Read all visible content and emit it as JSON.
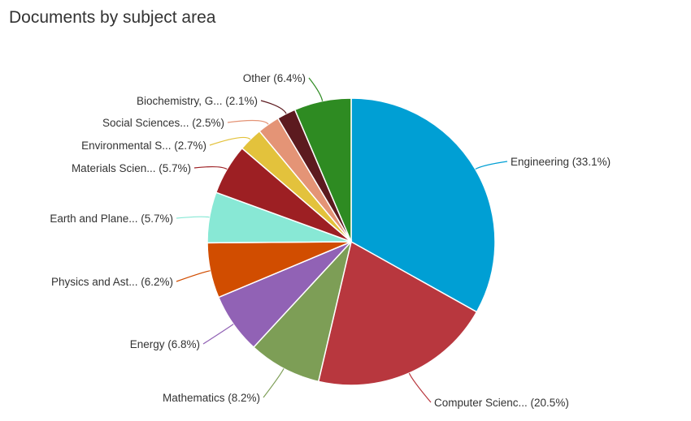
{
  "chart_data": {
    "type": "pie",
    "title": "Documents by subject area",
    "series": [
      {
        "label": "Engineering (33.1%)",
        "value": 33.1,
        "color": "#009fd4"
      },
      {
        "label": "Computer Scienc... (20.5%)",
        "value": 20.5,
        "color": "#b8373e"
      },
      {
        "label": "Mathematics (8.2%)",
        "value": 8.2,
        "color": "#7d9e56"
      },
      {
        "label": "Energy (6.8%)",
        "value": 6.8,
        "color": "#9162b5"
      },
      {
        "label": "Physics and Ast... (6.2%)",
        "value": 6.2,
        "color": "#d14d00"
      },
      {
        "label": "Earth and Plane... (5.7%)",
        "value": 5.7,
        "color": "#88e8d5"
      },
      {
        "label": "Materials Scien... (5.7%)",
        "value": 5.7,
        "color": "#9d1f23"
      },
      {
        "label": "Environmental S... (2.7%)",
        "value": 2.7,
        "color": "#e3c23c"
      },
      {
        "label": "Social Sciences... (2.5%)",
        "value": 2.5,
        "color": "#e49476"
      },
      {
        "label": "Biochemistry, G... (2.1%)",
        "value": 2.1,
        "color": "#5c1a1f"
      },
      {
        "label": "Other (6.4%)",
        "value": 6.4,
        "color": "#2e8b22"
      }
    ]
  }
}
